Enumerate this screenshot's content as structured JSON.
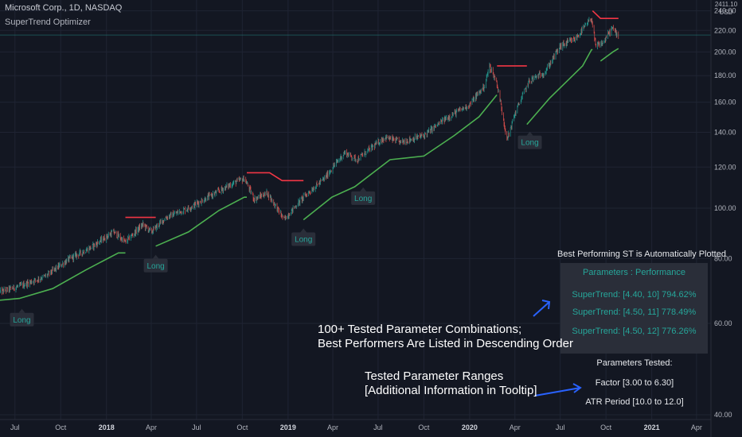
{
  "header": {
    "symbol": "Microsoft Corp., 1D, NASDAQ",
    "indicator": "SuperTrend Optimizer"
  },
  "axis": {
    "currency_top": "2411.10",
    "currency_unit": "USD"
  },
  "panel": {
    "title": "Best Performing ST is Automatically Plotted",
    "header": "Parameters : Performance",
    "rows": [
      "SuperTrend: [4.40, 10] 794.62%",
      "SuperTrend: [4.50, 11] 778.49%",
      "SuperTrend: [4.50, 12] 776.26%"
    ]
  },
  "params_tested": {
    "title": "Parameters Tested:",
    "factor": "Factor [3.00 to 6.30]",
    "atr": "ATR Period [10.0 to 12.0]"
  },
  "annotations": {
    "combos_line1": "100+ Tested Parameter Combinations;",
    "combos_line2": "Best Performers Are Listed in Descending Order",
    "ranges_line1": "Tested Parameter Ranges",
    "ranges_line2": "[Additional Information in Tooltip]"
  },
  "colors": {
    "background": "#131722",
    "grid": "#1f2433",
    "candle_up": "#26a69a",
    "candle_down": "#ef5350",
    "supertrend_up": "#4caf50",
    "supertrend_down": "#f23645",
    "arrow": "#2962ff",
    "panel_bg": "#2a2e39",
    "panel_text": "#26a69a"
  },
  "chart_data": {
    "type": "line",
    "title": "Microsoft Corp., 1D, NASDAQ",
    "xlabel": "",
    "ylabel": "USD",
    "ylim": [
      40,
      250
    ],
    "yticks": [
      40,
      60,
      80,
      100,
      120,
      140,
      160,
      180,
      200,
      220,
      240
    ],
    "xlim": [
      "2017-06-01",
      "2021-04-30"
    ],
    "xticks": [
      {
        "date": "2017-07-01",
        "label": "Jul",
        "bold": false
      },
      {
        "date": "2017-10-01",
        "label": "Oct",
        "bold": false
      },
      {
        "date": "2018-01-01",
        "label": "2018",
        "bold": true
      },
      {
        "date": "2018-04-01",
        "label": "Apr",
        "bold": false
      },
      {
        "date": "2018-07-01",
        "label": "Jul",
        "bold": false
      },
      {
        "date": "2018-10-01",
        "label": "Oct",
        "bold": false
      },
      {
        "date": "2019-01-01",
        "label": "2019",
        "bold": true
      },
      {
        "date": "2019-04-01",
        "label": "Apr",
        "bold": false
      },
      {
        "date": "2019-07-01",
        "label": "Jul",
        "bold": false
      },
      {
        "date": "2019-10-01",
        "label": "Oct",
        "bold": false
      },
      {
        "date": "2020-01-01",
        "label": "2020",
        "bold": true
      },
      {
        "date": "2020-04-01",
        "label": "Apr",
        "bold": false
      },
      {
        "date": "2020-07-01",
        "label": "Jul",
        "bold": false
      },
      {
        "date": "2020-10-01",
        "label": "Oct",
        "bold": false
      },
      {
        "date": "2021-01-01",
        "label": "2021",
        "bold": true
      },
      {
        "date": "2021-04-01",
        "label": "Apr",
        "bold": false
      }
    ],
    "last_price": 215.5,
    "price_series": [
      [
        "2017-06-01",
        69
      ],
      [
        "2017-07-15",
        71
      ],
      [
        "2017-09-01",
        74
      ],
      [
        "2017-10-20",
        80
      ],
      [
        "2017-12-01",
        84
      ],
      [
        "2018-01-15",
        90
      ],
      [
        "2018-02-08",
        86
      ],
      [
        "2018-03-15",
        93
      ],
      [
        "2018-04-01",
        90
      ],
      [
        "2018-05-01",
        96
      ],
      [
        "2018-06-15",
        100
      ],
      [
        "2018-08-01",
        106
      ],
      [
        "2018-09-15",
        112
      ],
      [
        "2018-10-05",
        114
      ],
      [
        "2018-10-25",
        104
      ],
      [
        "2018-11-20",
        107
      ],
      [
        "2018-12-24",
        95
      ],
      [
        "2019-02-01",
        105
      ],
      [
        "2019-03-15",
        114
      ],
      [
        "2019-04-25",
        128
      ],
      [
        "2019-05-20",
        124
      ],
      [
        "2019-07-15",
        137
      ],
      [
        "2019-08-15",
        134
      ],
      [
        "2019-10-01",
        138
      ],
      [
        "2019-11-15",
        149
      ],
      [
        "2019-12-31",
        158
      ],
      [
        "2020-01-31",
        172
      ],
      [
        "2020-02-10",
        188
      ],
      [
        "2020-02-24",
        175
      ],
      [
        "2020-03-16",
        135
      ],
      [
        "2020-04-01",
        152
      ],
      [
        "2020-04-30",
        176
      ],
      [
        "2020-06-01",
        183
      ],
      [
        "2020-07-01",
        205
      ],
      [
        "2020-08-01",
        212
      ],
      [
        "2020-09-02",
        232
      ],
      [
        "2020-09-10",
        205
      ],
      [
        "2020-09-25",
        208
      ],
      [
        "2020-10-13",
        222
      ],
      [
        "2020-10-26",
        215.5
      ]
    ],
    "series": [
      {
        "name": "SuperTrend: [4.40, 10]",
        "color": "#4caf50",
        "segments": [
          [
            [
              "2017-06-01",
              66.5
            ],
            [
              "2017-07-10",
              67
            ],
            [
              "2017-09-15",
              70
            ],
            [
              "2017-11-20",
              76
            ],
            [
              "2018-01-25",
              82
            ],
            [
              "2018-02-08",
              82
            ]
          ],
          [
            [
              "2018-04-10",
              84.5
            ],
            [
              "2018-06-15",
              90
            ],
            [
              "2018-08-15",
              99
            ],
            [
              "2018-10-05",
              105
            ],
            [
              "2018-10-10",
              105
            ]
          ],
          [
            [
              "2019-02-01",
              95
            ],
            [
              "2019-03-30",
              105
            ],
            [
              "2019-05-15",
              110
            ],
            [
              "2019-07-25",
              124
            ],
            [
              "2019-10-01",
              126
            ],
            [
              "2019-12-01",
              138
            ],
            [
              "2020-01-20",
              150
            ],
            [
              "2020-02-24",
              165
            ],
            [
              "2020-02-25",
              165
            ]
          ],
          [
            [
              "2020-04-25",
              145
            ],
            [
              "2020-06-10",
              163
            ],
            [
              "2020-08-15",
              188
            ],
            [
              "2020-09-02",
              202
            ],
            [
              "2020-09-04",
              202
            ]
          ],
          [
            [
              "2020-09-20",
              192
            ],
            [
              "2020-10-15",
              200
            ],
            [
              "2020-10-26",
              203
            ]
          ]
        ]
      },
      {
        "name": "SuperTrend: [4.40, 10] bear",
        "color": "#f23645",
        "segments": [
          [
            [
              "2018-02-08",
              96
            ],
            [
              "2018-03-20",
              96
            ],
            [
              "2018-04-10",
              96
            ]
          ],
          [
            [
              "2018-10-10",
              117
            ],
            [
              "2018-11-25",
              117
            ],
            [
              "2018-12-20",
              113
            ],
            [
              "2019-02-01",
              113
            ]
          ],
          [
            [
              "2020-02-25",
              188
            ],
            [
              "2020-04-25",
              188
            ]
          ],
          [
            [
              "2020-09-04",
              240
            ],
            [
              "2020-09-20",
              232
            ],
            [
              "2020-10-26",
              232
            ]
          ]
        ]
      }
    ],
    "annotations": [
      {
        "text": "Long",
        "date": "2017-07-15",
        "price": 66.5
      },
      {
        "text": "Long",
        "date": "2018-04-10",
        "price": 84.5
      },
      {
        "text": "Long",
        "date": "2019-02-01",
        "price": 95
      },
      {
        "text": "Long",
        "date": "2019-06-01",
        "price": 114
      },
      {
        "text": "Long",
        "date": "2020-05-01",
        "price": 146
      }
    ]
  }
}
